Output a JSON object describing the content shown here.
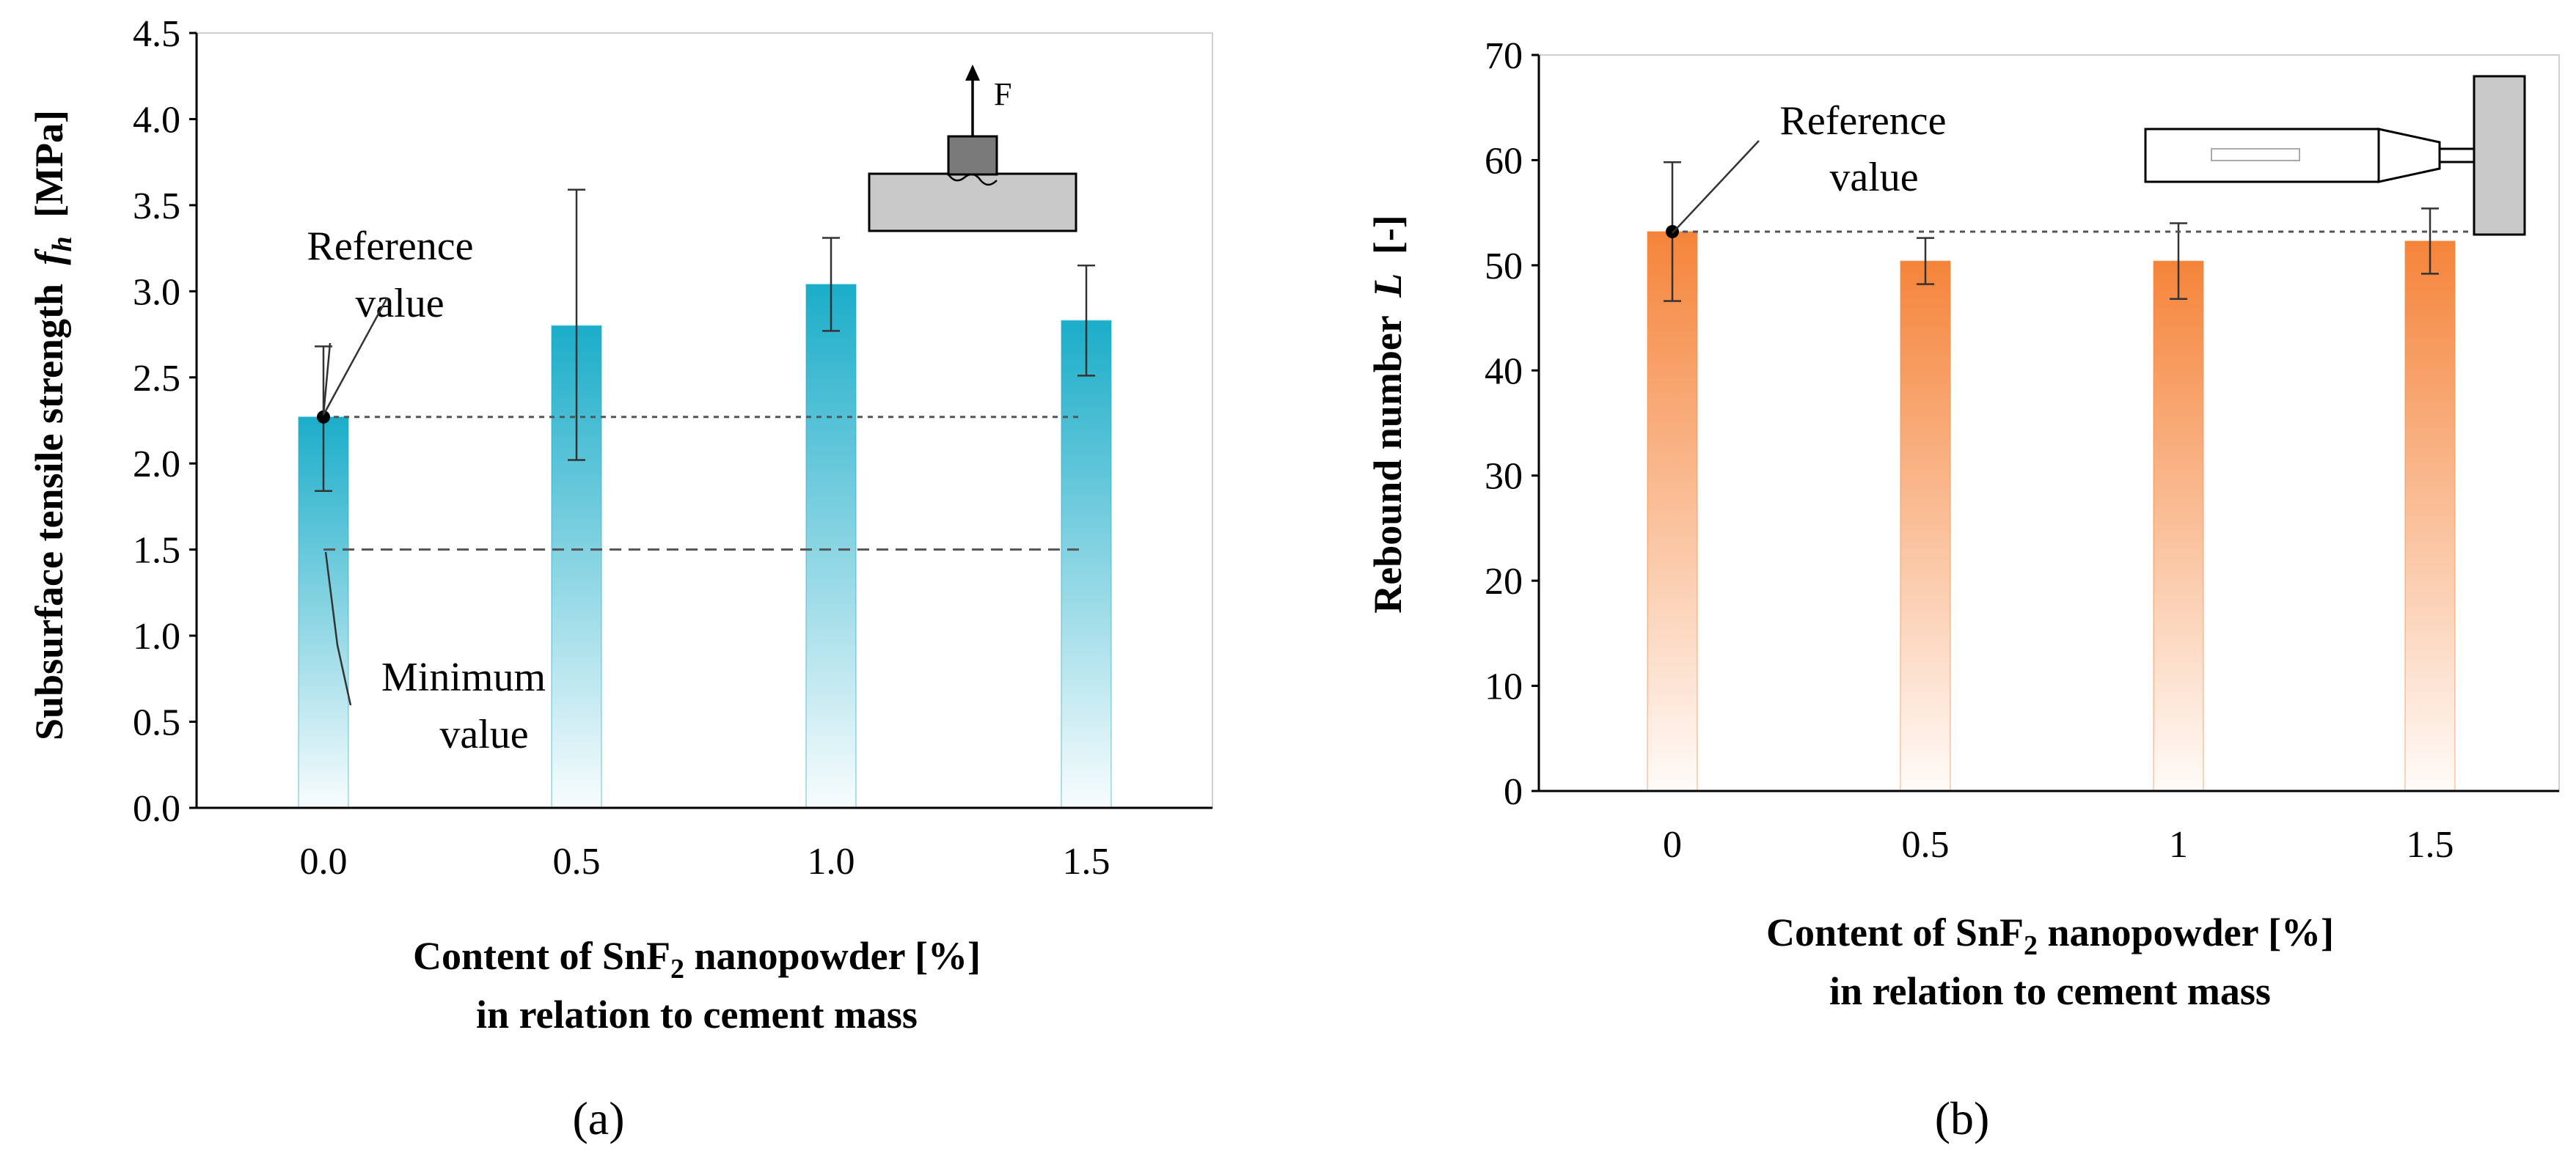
{
  "chart_data": [
    {
      "type": "bar",
      "panel_label": "(a)",
      "title": "",
      "categories": [
        "0.0",
        "0.5",
        "1.0",
        "1.5"
      ],
      "values": [
        2.27,
        2.8,
        3.04,
        2.83
      ],
      "error_low": [
        1.84,
        2.02,
        2.77,
        2.51
      ],
      "error_high": [
        2.68,
        3.59,
        3.31,
        3.15
      ],
      "ylim": [
        0,
        4.5
      ],
      "yticks": [
        "0.0",
        "0.5",
        "1.0",
        "1.5",
        "2.0",
        "2.5",
        "3.0",
        "3.5",
        "4.0",
        "4.5"
      ],
      "ylabel": "Subsurface tensile strength",
      "ylabel_symbol": "f",
      "ylabel_sub": "h",
      "ylabel_unit": "[MPa]",
      "xlabel_part1": "Content of SnF",
      "xlabel_sub": "2",
      "xlabel_part2": " nanopowder [%]",
      "xlabel_line2": "in relation to cement mass",
      "reference_value": 2.27,
      "minimum_value": 1.5,
      "annotation_reference_1": "Reference",
      "annotation_reference_2": "value",
      "annotation_minimum_1": "Minimum",
      "annotation_minimum_2": "value",
      "force_label": "F",
      "bar_color": "#1badc9",
      "grid": false,
      "legend": "none"
    },
    {
      "type": "bar",
      "panel_label": "(b)",
      "title": "",
      "categories": [
        "0",
        "0.5",
        "1",
        "1.5"
      ],
      "values": [
        53.2,
        50.4,
        50.4,
        52.3
      ],
      "error_low": [
        46.6,
        48.2,
        46.8,
        49.2
      ],
      "error_high": [
        59.8,
        52.6,
        54.0,
        55.4
      ],
      "ylim": [
        0,
        70
      ],
      "yticks": [
        "0",
        "10",
        "20",
        "30",
        "40",
        "50",
        "60",
        "70"
      ],
      "ylabel": "Rebound number",
      "ylabel_symbol": "L",
      "ylabel_unit": "[-]",
      "xlabel_part1": "Content of SnF",
      "xlabel_sub": "2",
      "xlabel_part2": " nanopowder [%]",
      "xlabel_line2": "in relation to cement mass",
      "reference_value": 53.2,
      "annotation_reference_1": "Reference",
      "annotation_reference_2": "value",
      "bar_color": "#f5843a",
      "grid": false,
      "legend": "none"
    }
  ]
}
